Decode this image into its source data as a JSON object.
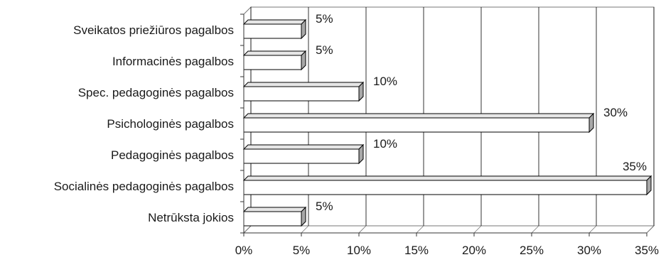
{
  "chart_data": {
    "type": "bar",
    "orientation": "horizontal",
    "title": "",
    "xlabel": "",
    "ylabel": "",
    "categories": [
      "Netrūksta jokios",
      "Socialinės pedagoginės pagalbos",
      "Pedagoginės pagalbos",
      "Psichologinės pagalbos",
      "Spec. pedagoginės pagalbos",
      "Informacinės pagalbos",
      "Sveikatos priežiūros pagalbos"
    ],
    "values": [
      5,
      35,
      10,
      30,
      10,
      5,
      5
    ],
    "value_labels": [
      "5%",
      "35%",
      "10%",
      "30%",
      "10%",
      "5%",
      "5%"
    ],
    "xlim": [
      0,
      35
    ],
    "x_ticks": [
      0,
      5,
      10,
      15,
      20,
      25,
      30,
      35
    ],
    "x_tick_labels": [
      "0%",
      "5%",
      "10%",
      "15%",
      "20%",
      "25%",
      "30%",
      "35%"
    ],
    "grid": "vertical",
    "legend": "none",
    "style": "3d",
    "colors": {
      "bar_fill": "#ffffff",
      "bar_top": "#e6e6e6",
      "bar_side": "#a8a8a8",
      "outline": "#000000",
      "grid": "#000000",
      "wall": "#ffffff"
    }
  }
}
